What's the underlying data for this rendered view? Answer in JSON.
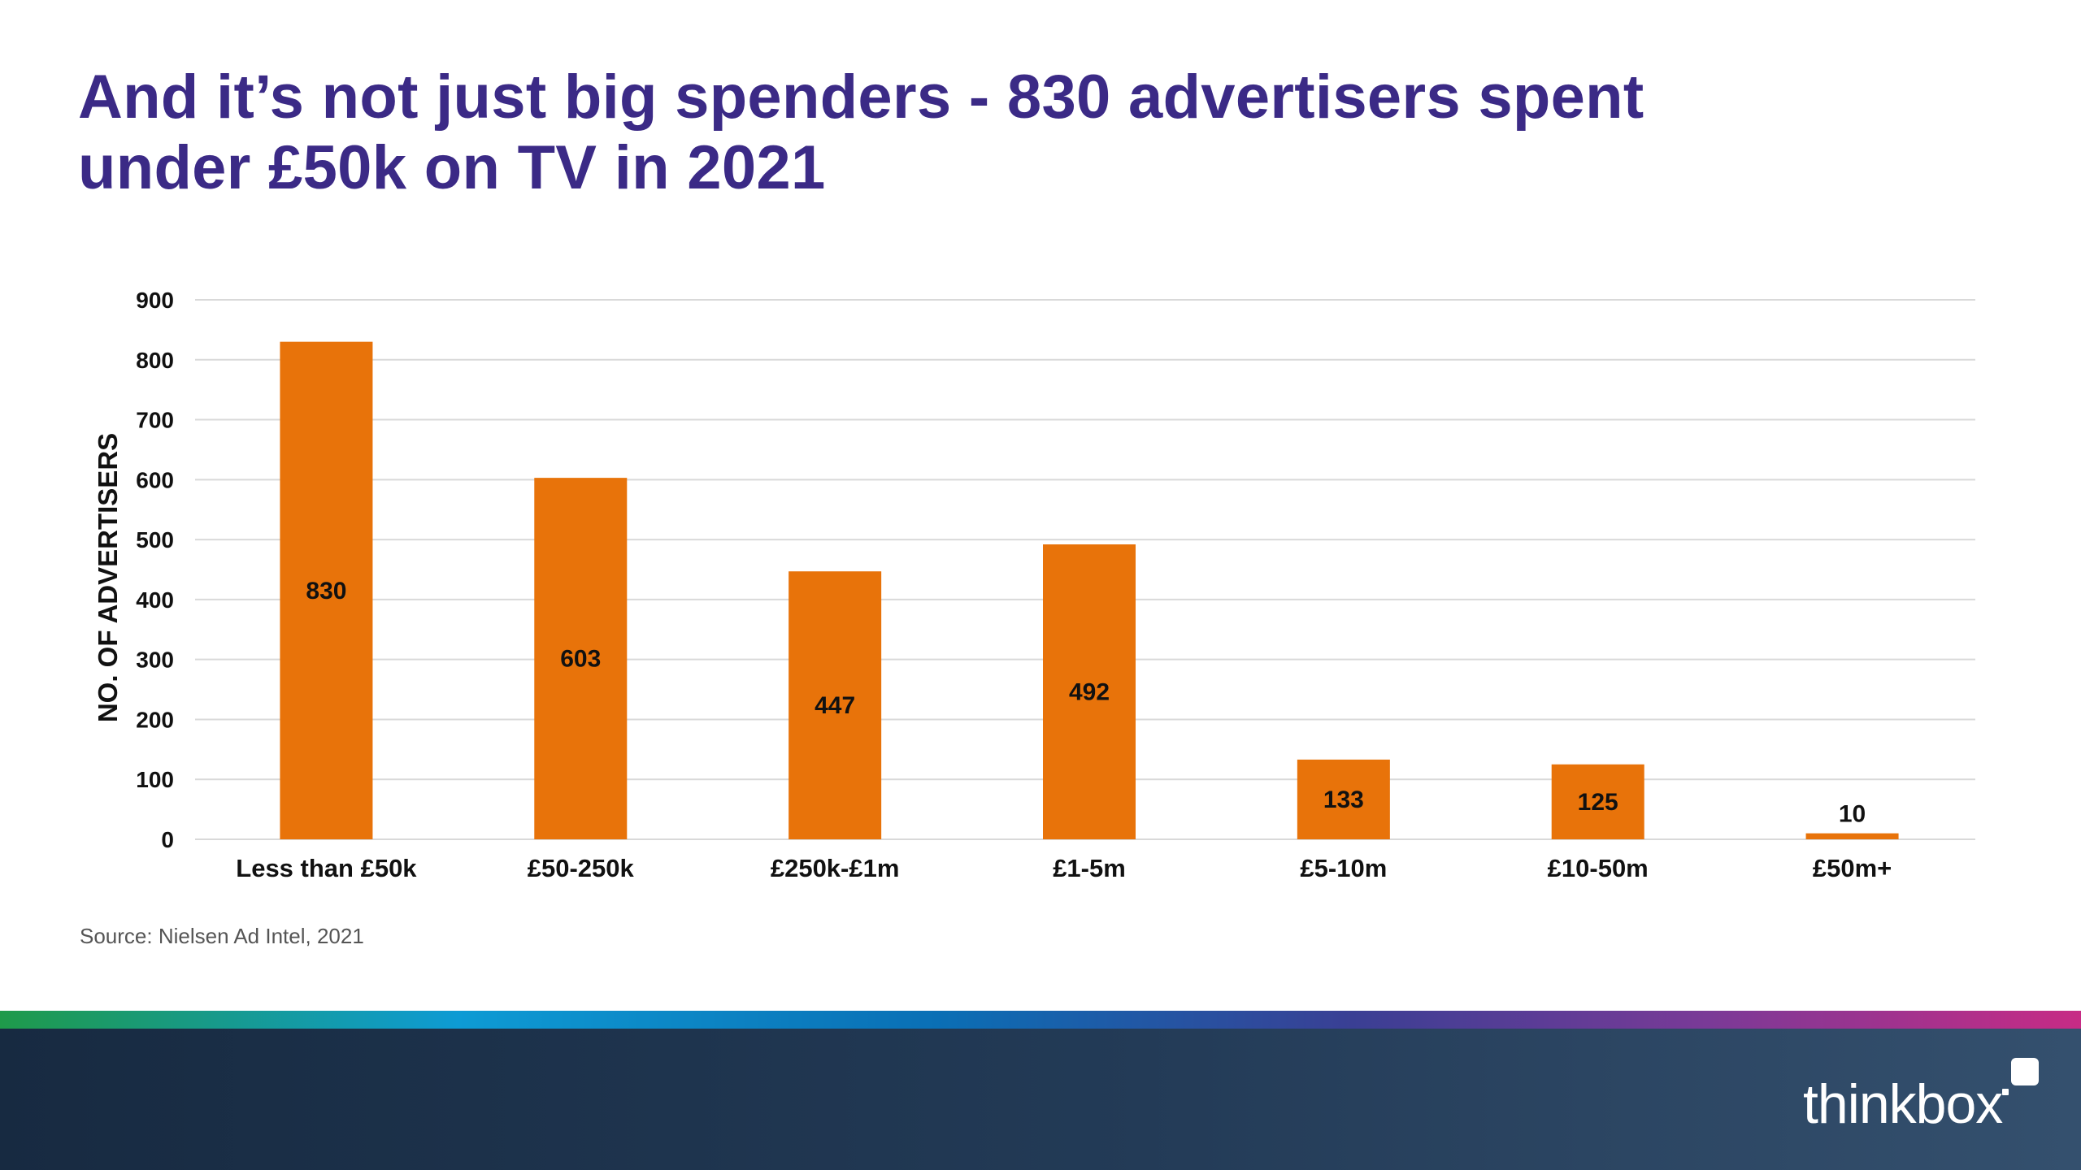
{
  "slide": {
    "title_line1": "And it’s not just big spenders - 830 advertisers spent",
    "title_line2": "under £50k on TV in 2021",
    "source": "Source: Nielsen Ad Intel, 2021",
    "logo_text": "thinkbox"
  },
  "colors": {
    "title": "#3b2a86",
    "bar": "#e8730a",
    "grid": "#d9d9d9",
    "footer": "#1f3550"
  },
  "chart_data": {
    "type": "bar",
    "title": "",
    "xlabel": "",
    "ylabel": "NO. OF ADVERTISERS",
    "categories": [
      "Less than £50k",
      "£50-250k",
      "£250k-£1m",
      "£1-5m",
      "£5-10m",
      "£10-50m",
      "£50m+"
    ],
    "values": [
      830,
      603,
      447,
      492,
      133,
      125,
      10
    ],
    "ylim": [
      0,
      900
    ],
    "yticks": [
      0,
      100,
      200,
      300,
      400,
      500,
      600,
      700,
      800,
      900
    ],
    "grid": true,
    "legend": "none",
    "data_labels": true
  }
}
